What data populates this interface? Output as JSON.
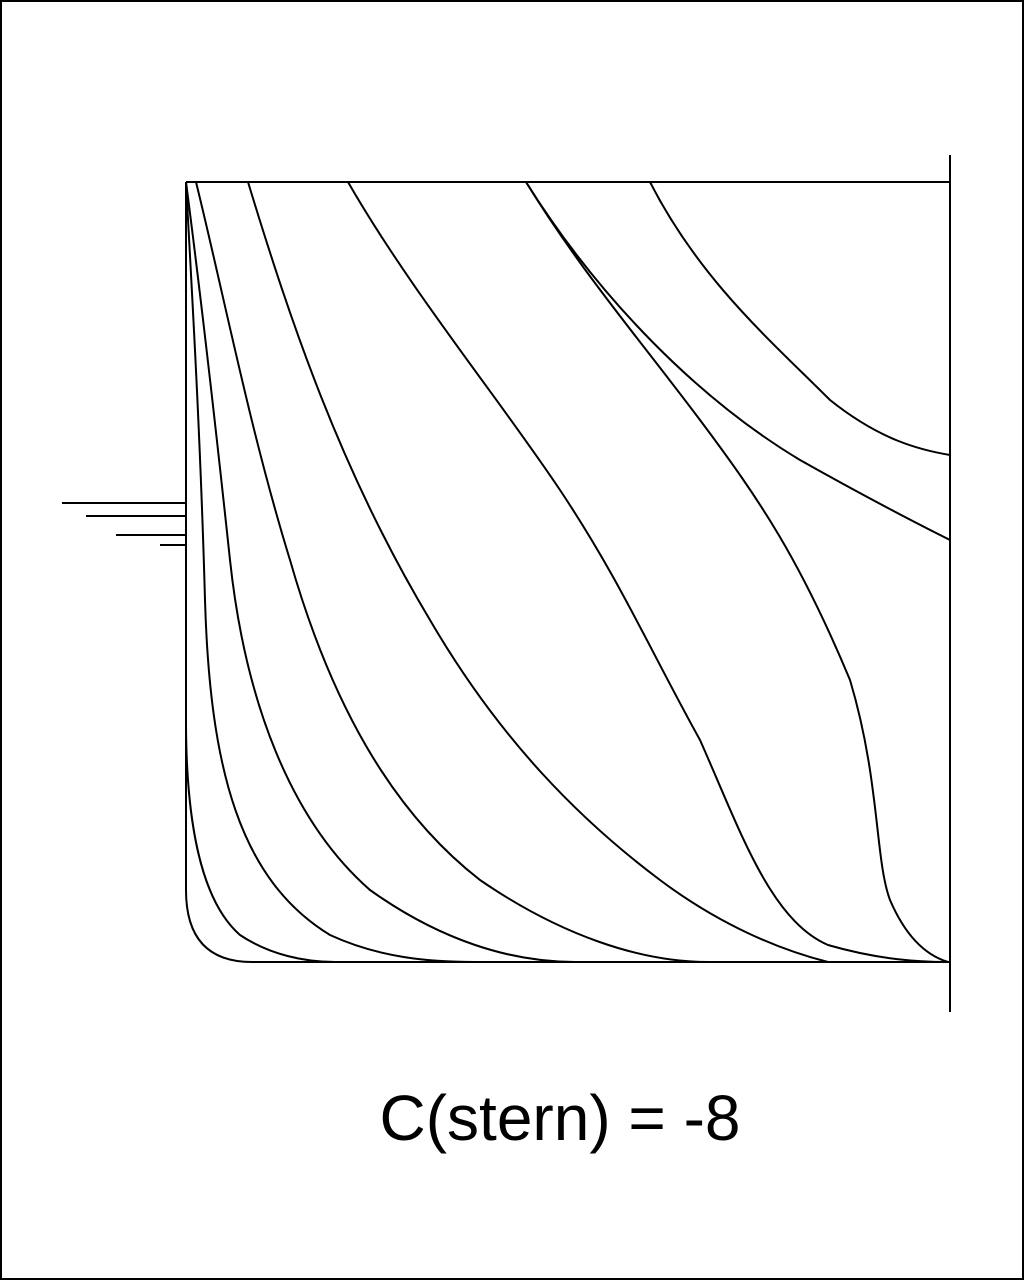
{
  "caption": "C(stern) = -8",
  "colors": {
    "background": "#ffffff",
    "line": "#000000"
  }
}
